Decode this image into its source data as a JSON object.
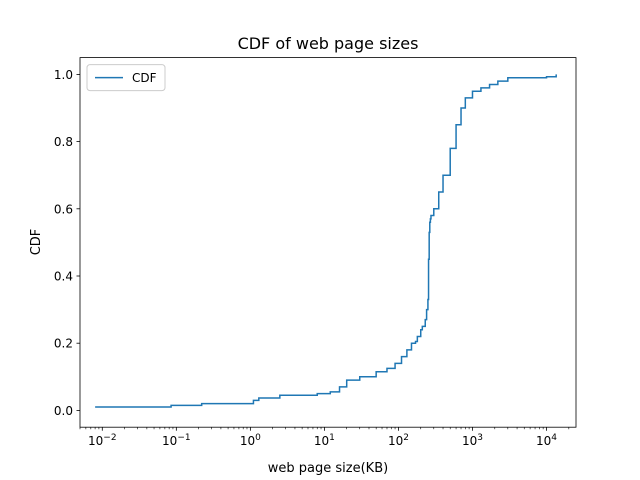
{
  "chart_data": {
    "type": "line",
    "drawstyle": "steps-post",
    "title": "CDF of web page sizes",
    "xlabel": "web page size(KB)",
    "ylabel": "CDF",
    "xscale": "log",
    "xlim": [
      0.005,
      25000
    ],
    "ylim": [
      -0.05,
      1.05
    ],
    "grid": false,
    "legend": {
      "position": "upper-left",
      "entries": [
        "CDF"
      ]
    },
    "xticks": [
      {
        "value": 0.01,
        "base": "10",
        "exp": "−2"
      },
      {
        "value": 0.1,
        "base": "10",
        "exp": "−1"
      },
      {
        "value": 1,
        "base": "10",
        "exp": "0"
      },
      {
        "value": 10,
        "base": "10",
        "exp": "1"
      },
      {
        "value": 100,
        "base": "10",
        "exp": "2"
      },
      {
        "value": 1000,
        "base": "10",
        "exp": "3"
      },
      {
        "value": 10000,
        "base": "10",
        "exp": "4"
      }
    ],
    "yticks": [
      {
        "value": 0.0,
        "label": "0.0"
      },
      {
        "value": 0.2,
        "label": "0.2"
      },
      {
        "value": 0.4,
        "label": "0.4"
      },
      {
        "value": 0.6,
        "label": "0.6"
      },
      {
        "value": 0.8,
        "label": "0.8"
      },
      {
        "value": 1.0,
        "label": "1.0"
      }
    ],
    "series": [
      {
        "name": "CDF",
        "color": "#1f77b4",
        "x": [
          0.008,
          0.085,
          0.22,
          1.1,
          1.3,
          2.5,
          8,
          12,
          16,
          20,
          30,
          50,
          70,
          90,
          110,
          130,
          150,
          170,
          180,
          200,
          210,
          230,
          240,
          250,
          255,
          260,
          265,
          270,
          275,
          300,
          350,
          400,
          500,
          600,
          700,
          800,
          1000,
          1300,
          1700,
          2200,
          3000,
          5000,
          10000,
          13500
        ],
        "y": [
          0.01,
          0.015,
          0.02,
          0.03,
          0.037,
          0.045,
          0.05,
          0.055,
          0.07,
          0.09,
          0.1,
          0.115,
          0.125,
          0.14,
          0.16,
          0.18,
          0.2,
          0.205,
          0.22,
          0.24,
          0.25,
          0.27,
          0.3,
          0.33,
          0.45,
          0.53,
          0.56,
          0.57,
          0.58,
          0.6,
          0.65,
          0.7,
          0.78,
          0.85,
          0.9,
          0.93,
          0.95,
          0.96,
          0.97,
          0.98,
          0.99,
          0.99,
          0.993,
          1.0
        ]
      }
    ]
  }
}
